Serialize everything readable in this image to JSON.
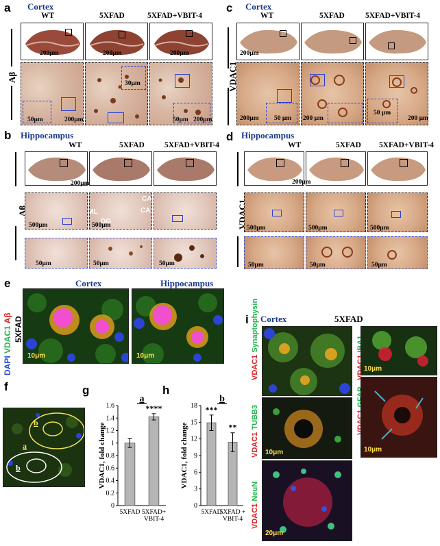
{
  "panels": {
    "a": {
      "letter": "a",
      "region": "Cortex",
      "cols": [
        "WT",
        "5XFAD",
        "5XFAD+VBIT-4"
      ],
      "row_label": "Aβ",
      "scales_top": [
        "200μm",
        "200μm",
        "200μm"
      ],
      "scales_bottom": [
        "50μm",
        "200μm",
        "30μm",
        "50μm",
        "200μm"
      ]
    },
    "b": {
      "letter": "b",
      "region": "Hippocampus",
      "cols": [
        "WT",
        "5XFAD",
        "5XFAD+VBIT-4"
      ],
      "row_label": "Aβ",
      "scales_top": [
        "200μm"
      ],
      "scales_mid": [
        "500μm",
        "500μm"
      ],
      "scales_bottom": [
        "50μm",
        "50μm",
        "50μm"
      ],
      "annotations": [
        "ML",
        "DG",
        "CA1",
        "CA3"
      ]
    },
    "c": {
      "letter": "c",
      "region": "Cortex",
      "cols": [
        "WT",
        "5XFAD",
        "5XFAD+VBIT-4"
      ],
      "row_label": "VDAC1",
      "scales_top": [
        "200μm"
      ],
      "scales_bottom": [
        "200μm",
        "50 μm",
        "200 μm",
        "50 μm",
        "200 μm"
      ]
    },
    "d": {
      "letter": "d",
      "region": "Hippocampus",
      "cols": [
        "WT",
        "5XFAD",
        "5XFAD+VBIT-4"
      ],
      "row_label": "VDAC1",
      "scales_top": [
        "200μm"
      ],
      "scales_mid": [
        "500μm",
        "500μm",
        "500μm"
      ],
      "scales_bottom": [
        "50μm",
        "50μm",
        "50μm"
      ]
    },
    "e": {
      "letter": "e",
      "cols": [
        "Cortex",
        "Hippocampus"
      ],
      "side_label": "5XFAD",
      "stain": {
        "dapi": "DAPI",
        "vdac1": "VDAC1",
        "abeta": "Aβ"
      },
      "scales": [
        "10μm",
        "10μm"
      ]
    },
    "f": {
      "letter": "f",
      "regions": [
        "a",
        "b",
        "b"
      ]
    },
    "i": {
      "letter": "i",
      "region": "Cortex",
      "title": "5XFAD",
      "tiles": [
        {
          "red": "VDAC1",
          "green": "Synaptophysin"
        },
        {
          "red": "VDAC1",
          "green": "IBA1",
          "scale": "10μm"
        },
        {
          "red": "VDAC1",
          "green": "TUBB3",
          "scale": "10μm"
        },
        {
          "red": "VDAC1",
          "green": "GFAP",
          "scale": "10μm"
        },
        {
          "red": "VDAC1",
          "green": "NeuN",
          "scale": "20μm"
        }
      ]
    }
  },
  "colors": {
    "header_blue": "#1a3a8a",
    "box_blue": "#2b3fd6",
    "red": "#e02020",
    "green": "#1fb34a",
    "dapi_blue": "#2a4ad6",
    "bar_fill": "#b5b5b5"
  },
  "chart_data": [
    {
      "letter": "g",
      "type": "bar",
      "title": "a",
      "ylabel": "VDAC1, fold change",
      "categories": [
        "5XFAD",
        "5XFAD+\nVBIT-4"
      ],
      "values": [
        1.0,
        1.42
      ],
      "errors": [
        0.07,
        0.05
      ],
      "significance": [
        "",
        "****"
      ],
      "ylim": [
        0,
        1.6
      ],
      "yticks": [
        "0",
        "0.2",
        "0.4",
        "0.6",
        "0.8",
        "1",
        "1.2",
        "1.4",
        "1.6"
      ]
    },
    {
      "letter": "h",
      "type": "bar",
      "title": "b",
      "ylabel": "VDAC1, fold change",
      "categories": [
        "5XFAD",
        "5XFAD +\nVBIT-4"
      ],
      "values": [
        14.9,
        11.4
      ],
      "errors": [
        1.4,
        1.7
      ],
      "significance": [
        "***",
        "**"
      ],
      "ylim": [
        0,
        18
      ],
      "yticks": [
        "0",
        "3",
        "6",
        "9",
        "12",
        "15",
        "18"
      ]
    }
  ]
}
